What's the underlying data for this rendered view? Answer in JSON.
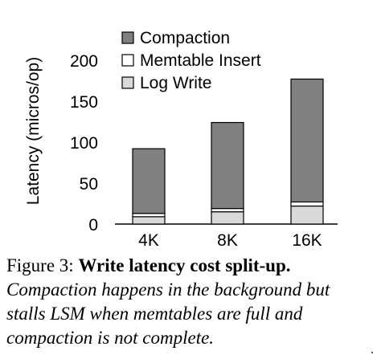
{
  "chart_data": {
    "type": "bar",
    "stacked": true,
    "categories": [
      "4K",
      "8K",
      "16K"
    ],
    "series": [
      {
        "name": "Log Write",
        "color": "#d9d9d9",
        "values": [
          9,
          15,
          22
        ]
      },
      {
        "name": "Memtable Insert",
        "color": "#ffffff",
        "values": [
          4,
          4,
          5
        ]
      },
      {
        "name": "Compaction",
        "color": "#808080",
        "values": [
          79,
          105,
          150
        ]
      }
    ],
    "totals": [
      92,
      124,
      177
    ],
    "ylabel": "Latency (micros/op)",
    "xlabel": "",
    "ylim": [
      0,
      200
    ],
    "yticks": [
      0,
      50,
      100,
      150,
      200
    ],
    "legend": "top-right",
    "grid": false
  },
  "caption": {
    "label": "Figure 3:",
    "title": "Write latency cost split-up.",
    "body": "Compaction happens in the background but stalls LSM when memtables are full and compaction is not complete."
  }
}
